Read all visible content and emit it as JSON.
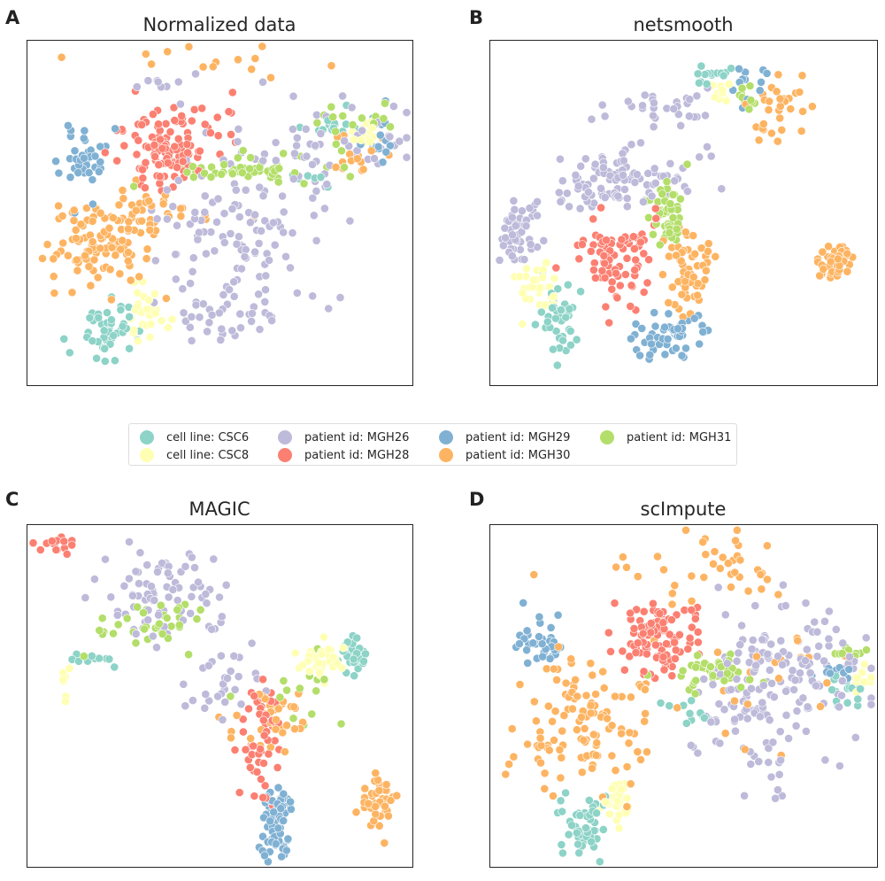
{
  "legend": [
    {
      "label": "cell line: CSC6",
      "color": "#8dd3c7"
    },
    {
      "label": "cell line: CSC8",
      "color": "#ffffb3"
    },
    {
      "label": "patient id: MGH26",
      "color": "#bebada"
    },
    {
      "label": "patient id: MGH28",
      "color": "#fb8072"
    },
    {
      "label": "patient id: MGH29",
      "color": "#80b1d3"
    },
    {
      "label": "patient id: MGH30",
      "color": "#fdb462"
    },
    {
      "label": "patient id: MGH31",
      "color": "#b3de69"
    }
  ],
  "chart_data": [
    {
      "panel": "A",
      "title": "Normalized data",
      "type": "scatter",
      "xlabel": "",
      "ylabel": "",
      "grid": false,
      "legend_placement": "shared, between rows",
      "series": [
        {
          "name": "cell line: CSC6",
          "clusters": [
            {
              "cx": 0.21,
              "cy": 0.84,
              "sx": 0.035,
              "sy": 0.045,
              "n": 45
            },
            {
              "cx": 0.79,
              "cy": 0.24,
              "sx": 0.03,
              "sy": 0.015,
              "n": 14
            },
            {
              "cx": 0.73,
              "cy": 0.42,
              "sx": 0.03,
              "sy": 0.03,
              "n": 6
            }
          ]
        },
        {
          "name": "cell line: CSC8",
          "clusters": [
            {
              "cx": 0.305,
              "cy": 0.77,
              "sx": 0.025,
              "sy": 0.05,
              "n": 35
            },
            {
              "cx": 0.87,
              "cy": 0.27,
              "sx": 0.02,
              "sy": 0.025,
              "n": 15
            }
          ]
        },
        {
          "name": "patient id: MGH26",
          "clusters": [
            {
              "cx": 0.54,
              "cy": 0.6,
              "sx": 0.1,
              "sy": 0.15,
              "n": 150
            },
            {
              "cx": 0.78,
              "cy": 0.3,
              "sx": 0.1,
              "sy": 0.08,
              "n": 50
            },
            {
              "cx": 0.33,
              "cy": 0.12,
              "sx": 0.08,
              "sy": 0.03,
              "n": 8
            }
          ]
        },
        {
          "name": "patient id: MGH28",
          "clusters": [
            {
              "cx": 0.35,
              "cy": 0.32,
              "sx": 0.06,
              "sy": 0.06,
              "n": 110
            },
            {
              "cx": 0.5,
              "cy": 0.25,
              "sx": 0.05,
              "sy": 0.03,
              "n": 10
            }
          ]
        },
        {
          "name": "patient id: MGH29",
          "clusters": [
            {
              "cx": 0.14,
              "cy": 0.36,
              "sx": 0.03,
              "sy": 0.05,
              "n": 40
            },
            {
              "cx": 0.91,
              "cy": 0.27,
              "sx": 0.015,
              "sy": 0.04,
              "n": 15
            }
          ]
        },
        {
          "name": "patient id: MGH30",
          "clusters": [
            {
              "cx": 0.21,
              "cy": 0.58,
              "sx": 0.08,
              "sy": 0.07,
              "n": 130
            },
            {
              "cx": 0.52,
              "cy": 0.06,
              "sx": 0.14,
              "sy": 0.025,
              "n": 14
            },
            {
              "cx": 0.86,
              "cy": 0.33,
              "sx": 0.05,
              "sy": 0.04,
              "n": 15
            },
            {
              "cx": 0.37,
              "cy": 0.49,
              "sx": 0.04,
              "sy": 0.03,
              "n": 10
            }
          ]
        },
        {
          "name": "patient id: MGH31",
          "clusters": [
            {
              "cx": 0.56,
              "cy": 0.37,
              "sx": 0.09,
              "sy": 0.02,
              "n": 50
            },
            {
              "cx": 0.84,
              "cy": 0.24,
              "sx": 0.06,
              "sy": 0.03,
              "n": 18
            }
          ]
        }
      ]
    },
    {
      "panel": "B",
      "title": "netsmooth",
      "type": "scatter",
      "xlabel": "",
      "ylabel": "",
      "grid": false,
      "series": [
        {
          "name": "cell line: CSC6",
          "clusters": [
            {
              "cx": 0.18,
              "cy": 0.82,
              "sx": 0.025,
              "sy": 0.05,
              "n": 40
            },
            {
              "cx": 0.58,
              "cy": 0.1,
              "sx": 0.04,
              "sy": 0.02,
              "n": 14
            }
          ]
        },
        {
          "name": "cell line: CSC8",
          "clusters": [
            {
              "cx": 0.12,
              "cy": 0.71,
              "sx": 0.025,
              "sy": 0.04,
              "n": 30
            },
            {
              "cx": 0.6,
              "cy": 0.14,
              "sx": 0.03,
              "sy": 0.02,
              "n": 10
            }
          ]
        },
        {
          "name": "patient id: MGH26",
          "clusters": [
            {
              "cx": 0.07,
              "cy": 0.55,
              "sx": 0.03,
              "sy": 0.05,
              "n": 50
            },
            {
              "cx": 0.27,
              "cy": 0.45,
              "sx": 0.06,
              "sy": 0.03,
              "n": 30
            },
            {
              "cx": 0.35,
              "cy": 0.39,
              "sx": 0.1,
              "sy": 0.04,
              "n": 70
            },
            {
              "cx": 0.45,
              "cy": 0.2,
              "sx": 0.07,
              "sy": 0.03,
              "n": 30
            }
          ]
        },
        {
          "name": "patient id: MGH28",
          "clusters": [
            {
              "cx": 0.33,
              "cy": 0.63,
              "sx": 0.05,
              "sy": 0.06,
              "n": 80
            }
          ]
        },
        {
          "name": "patient id: MGH29",
          "clusters": [
            {
              "cx": 0.46,
              "cy": 0.85,
              "sx": 0.05,
              "sy": 0.035,
              "n": 55
            },
            {
              "cx": 0.66,
              "cy": 0.12,
              "sx": 0.03,
              "sy": 0.03,
              "n": 12
            }
          ]
        },
        {
          "name": "patient id: MGH30",
          "clusters": [
            {
              "cx": 0.89,
              "cy": 0.64,
              "sx": 0.025,
              "sy": 0.022,
              "n": 50
            },
            {
              "cx": 0.51,
              "cy": 0.66,
              "sx": 0.03,
              "sy": 0.07,
              "n": 60
            },
            {
              "cx": 0.74,
              "cy": 0.2,
              "sx": 0.04,
              "sy": 0.05,
              "n": 30
            }
          ]
        },
        {
          "name": "patient id: MGH31",
          "clusters": [
            {
              "cx": 0.46,
              "cy": 0.5,
              "sx": 0.025,
              "sy": 0.04,
              "n": 55
            },
            {
              "cx": 0.66,
              "cy": 0.17,
              "sx": 0.02,
              "sy": 0.02,
              "n": 10
            }
          ]
        }
      ]
    },
    {
      "panel": "C",
      "title": "MAGIC",
      "type": "scatter",
      "xlabel": "",
      "ylabel": "",
      "grid": false,
      "series": [
        {
          "name": "cell line: CSC6",
          "clusters": [
            {
              "cx": 0.85,
              "cy": 0.38,
              "sx": 0.02,
              "sy": 0.03,
              "n": 35
            },
            {
              "cx": 0.17,
              "cy": 0.39,
              "sx": 0.03,
              "sy": 0.01,
              "n": 10
            }
          ]
        },
        {
          "name": "cell line: CSC8",
          "clusters": [
            {
              "cx": 0.76,
              "cy": 0.39,
              "sx": 0.035,
              "sy": 0.04,
              "n": 35
            },
            {
              "cx": 0.1,
              "cy": 0.45,
              "sx": 0.01,
              "sy": 0.03,
              "n": 8
            }
          ]
        },
        {
          "name": "patient id: MGH26",
          "clusters": [
            {
              "cx": 0.35,
              "cy": 0.2,
              "sx": 0.08,
              "sy": 0.06,
              "n": 80
            },
            {
              "cx": 0.5,
              "cy": 0.45,
              "sx": 0.06,
              "sy": 0.06,
              "n": 30
            }
          ]
        },
        {
          "name": "patient id: MGH28",
          "clusters": [
            {
              "cx": 0.08,
              "cy": 0.06,
              "sx": 0.02,
              "sy": 0.015,
              "n": 18
            },
            {
              "cx": 0.6,
              "cy": 0.62,
              "sx": 0.03,
              "sy": 0.08,
              "n": 50
            }
          ]
        },
        {
          "name": "patient id: MGH29",
          "clusters": [
            {
              "cx": 0.645,
              "cy": 0.88,
              "sx": 0.022,
              "sy": 0.06,
              "n": 70
            }
          ]
        },
        {
          "name": "patient id: MGH30",
          "clusters": [
            {
              "cx": 0.91,
              "cy": 0.8,
              "sx": 0.02,
              "sy": 0.04,
              "n": 50
            },
            {
              "cx": 0.64,
              "cy": 0.56,
              "sx": 0.05,
              "sy": 0.05,
              "n": 40
            }
          ]
        },
        {
          "name": "patient id: MGH31",
          "clusters": [
            {
              "cx": 0.32,
              "cy": 0.3,
              "sx": 0.07,
              "sy": 0.04,
              "n": 35
            },
            {
              "cx": 0.7,
              "cy": 0.5,
              "sx": 0.05,
              "sy": 0.05,
              "n": 15
            }
          ]
        }
      ]
    },
    {
      "panel": "D",
      "title": "scImpute",
      "type": "scatter",
      "xlabel": "",
      "ylabel": "",
      "grid": false,
      "series": [
        {
          "name": "cell line: CSC6",
          "clusters": [
            {
              "cx": 0.25,
              "cy": 0.87,
              "sx": 0.04,
              "sy": 0.045,
              "n": 50
            },
            {
              "cx": 0.92,
              "cy": 0.49,
              "sx": 0.03,
              "sy": 0.02,
              "n": 15
            },
            {
              "cx": 0.52,
              "cy": 0.55,
              "sx": 0.03,
              "sy": 0.02,
              "n": 12
            }
          ]
        },
        {
          "name": "cell line: CSC8",
          "clusters": [
            {
              "cx": 0.33,
              "cy": 0.82,
              "sx": 0.02,
              "sy": 0.04,
              "n": 30
            },
            {
              "cx": 0.95,
              "cy": 0.45,
              "sx": 0.02,
              "sy": 0.02,
              "n": 10
            }
          ]
        },
        {
          "name": "patient id: MGH26",
          "clusters": [
            {
              "cx": 0.7,
              "cy": 0.5,
              "sx": 0.09,
              "sy": 0.12,
              "n": 140
            },
            {
              "cx": 0.86,
              "cy": 0.4,
              "sx": 0.08,
              "sy": 0.06,
              "n": 40
            }
          ]
        },
        {
          "name": "patient id: MGH28",
          "clusters": [
            {
              "cx": 0.42,
              "cy": 0.33,
              "sx": 0.05,
              "sy": 0.055,
              "n": 100
            }
          ]
        },
        {
          "name": "patient id: MGH29",
          "clusters": [
            {
              "cx": 0.13,
              "cy": 0.34,
              "sx": 0.03,
              "sy": 0.04,
              "n": 35
            },
            {
              "cx": 0.89,
              "cy": 0.43,
              "sx": 0.03,
              "sy": 0.02,
              "n": 10
            }
          ]
        },
        {
          "name": "patient id: MGH30",
          "clusters": [
            {
              "cx": 0.23,
              "cy": 0.58,
              "sx": 0.09,
              "sy": 0.11,
              "n": 120
            },
            {
              "cx": 0.55,
              "cy": 0.12,
              "sx": 0.16,
              "sy": 0.06,
              "n": 40
            },
            {
              "cx": 0.72,
              "cy": 0.45,
              "sx": 0.1,
              "sy": 0.1,
              "n": 20
            }
          ]
        },
        {
          "name": "patient id: MGH31",
          "clusters": [
            {
              "cx": 0.58,
              "cy": 0.43,
              "sx": 0.06,
              "sy": 0.025,
              "n": 45
            },
            {
              "cx": 0.93,
              "cy": 0.37,
              "sx": 0.02,
              "sy": 0.015,
              "n": 10
            }
          ]
        }
      ]
    }
  ]
}
